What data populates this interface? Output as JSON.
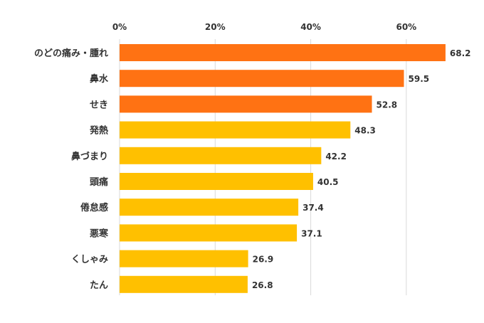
{
  "chart_data": {
    "type": "bar",
    "orientation": "horizontal",
    "categories": [
      "のどの痛み・腫れ",
      "鼻水",
      "せき",
      "発熱",
      "鼻づまり",
      "頭痛",
      "倦怠感",
      "悪寒",
      "くしゃみ",
      "たん"
    ],
    "values": [
      68.2,
      59.5,
      52.8,
      48.3,
      42.2,
      40.5,
      37.4,
      37.1,
      26.9,
      26.8
    ],
    "xlim": [
      0,
      70
    ],
    "ticks": [
      "0%",
      "20%",
      "40%",
      "60%"
    ],
    "tick_values": [
      0,
      20,
      40,
      60
    ],
    "axis_position": "top",
    "grid": true,
    "colors": {
      "highlight": "#ff7213",
      "normal": "#ffc000"
    },
    "highlight_count": 3,
    "title": "",
    "xlabel": "",
    "ylabel": ""
  }
}
